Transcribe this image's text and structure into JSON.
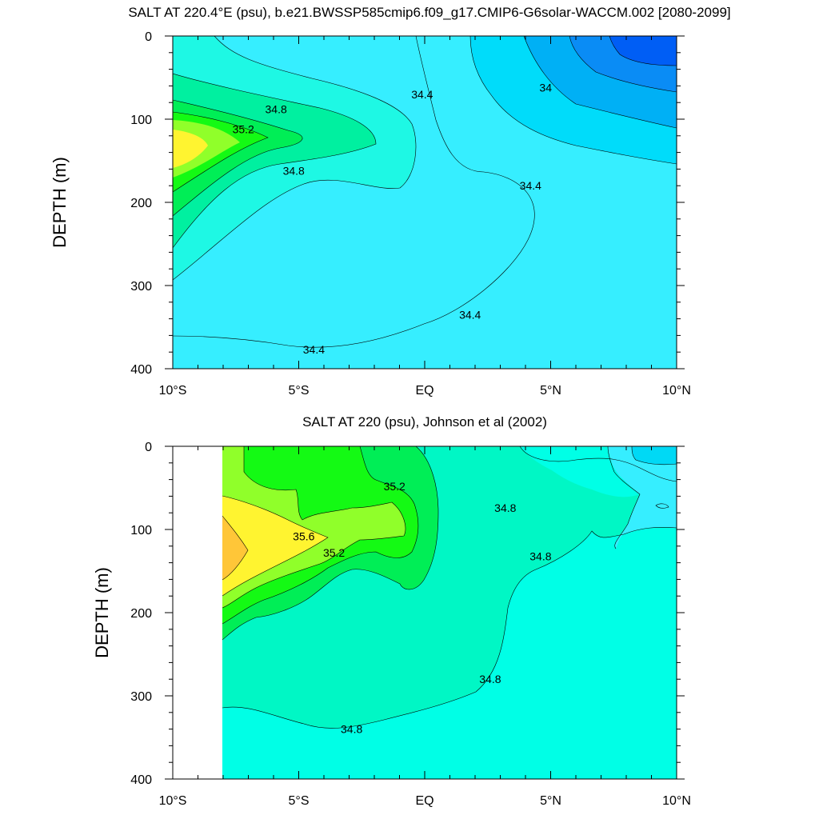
{
  "chart_data": [
    {
      "type": "contour",
      "title": "SALT AT 220.4°E (psu), b.e21.BWSSP585cmip6.f09_g17.CMIP6-G6solar-WACCM.002 [2080-2099]",
      "xlabel": "",
      "ylabel": "DEPTH (m)",
      "x_ticks": [
        "10°S",
        "5°S",
        "EQ",
        "5°N",
        "10°N"
      ],
      "y_ticks": [
        "0",
        "100",
        "200",
        "300",
        "400"
      ],
      "xlim": [
        -10,
        10
      ],
      "ylim": [
        400,
        0
      ],
      "contour_interval": 0.2,
      "contour_labels": [
        {
          "text": "34.8",
          "x": -5.9,
          "y": 88
        },
        {
          "text": "35.2",
          "x": -7.2,
          "y": 112
        },
        {
          "text": "34.8",
          "x": -5.2,
          "y": 162
        },
        {
          "text": "34.4",
          "x": -0.1,
          "y": 70
        },
        {
          "text": "34",
          "x": 4.8,
          "y": 62
        },
        {
          "text": "34.4",
          "x": 4.2,
          "y": 180
        },
        {
          "text": "34.4",
          "x": 1.8,
          "y": 335
        },
        {
          "text": "34.4",
          "x": -4.4,
          "y": 377
        }
      ],
      "colors": {
        "s33_6": "#005ef5",
        "s33_8": "#0a8cf5",
        "s34_0": "#00b0f5",
        "s34_2": "#00dcfa",
        "s34_4": "#36eeff",
        "s34_6": "#1ef8e4",
        "s34_8": "#00f0a0",
        "s35_0": "#00ee56",
        "s35_2": "#14fa14",
        "s35_4": "#90ff2a",
        "s35_6": "#fff430",
        "s35_8": "#ffc638"
      }
    },
    {
      "type": "contour",
      "title": "SALT AT 220 (psu), Johnson et al (2002)",
      "xlabel": "",
      "ylabel": "DEPTH (m)",
      "x_ticks": [
        "10°S",
        "5°S",
        "EQ",
        "5°N",
        "10°N"
      ],
      "y_ticks": [
        "0",
        "100",
        "200",
        "300",
        "400"
      ],
      "xlim": [
        -10,
        10
      ],
      "ylim": [
        400,
        0
      ],
      "contour_interval": 0.2,
      "contour_labels": [
        {
          "text": "35.2",
          "x": -1.2,
          "y": 48
        },
        {
          "text": "35.6",
          "x": -4.8,
          "y": 108
        },
        {
          "text": "35.2",
          "x": -3.6,
          "y": 128
        },
        {
          "text": "34.8",
          "x": 3.2,
          "y": 74
        },
        {
          "text": "34.8",
          "x": 4.6,
          "y": 132
        },
        {
          "text": "34.8",
          "x": 2.6,
          "y": 280
        },
        {
          "text": "34.8",
          "x": -2.9,
          "y": 340
        }
      ],
      "colors": {
        "s34_4": "#36eeff",
        "s34_6": "#00ffe6",
        "s34_8": "#00f7c5",
        "s35_0": "#00ee56",
        "s35_2": "#14fa14",
        "s35_4": "#90ff2a",
        "s35_6": "#fff430",
        "s35_8": "#ffc638",
        "s34_2": "#00d9f5"
      }
    }
  ]
}
